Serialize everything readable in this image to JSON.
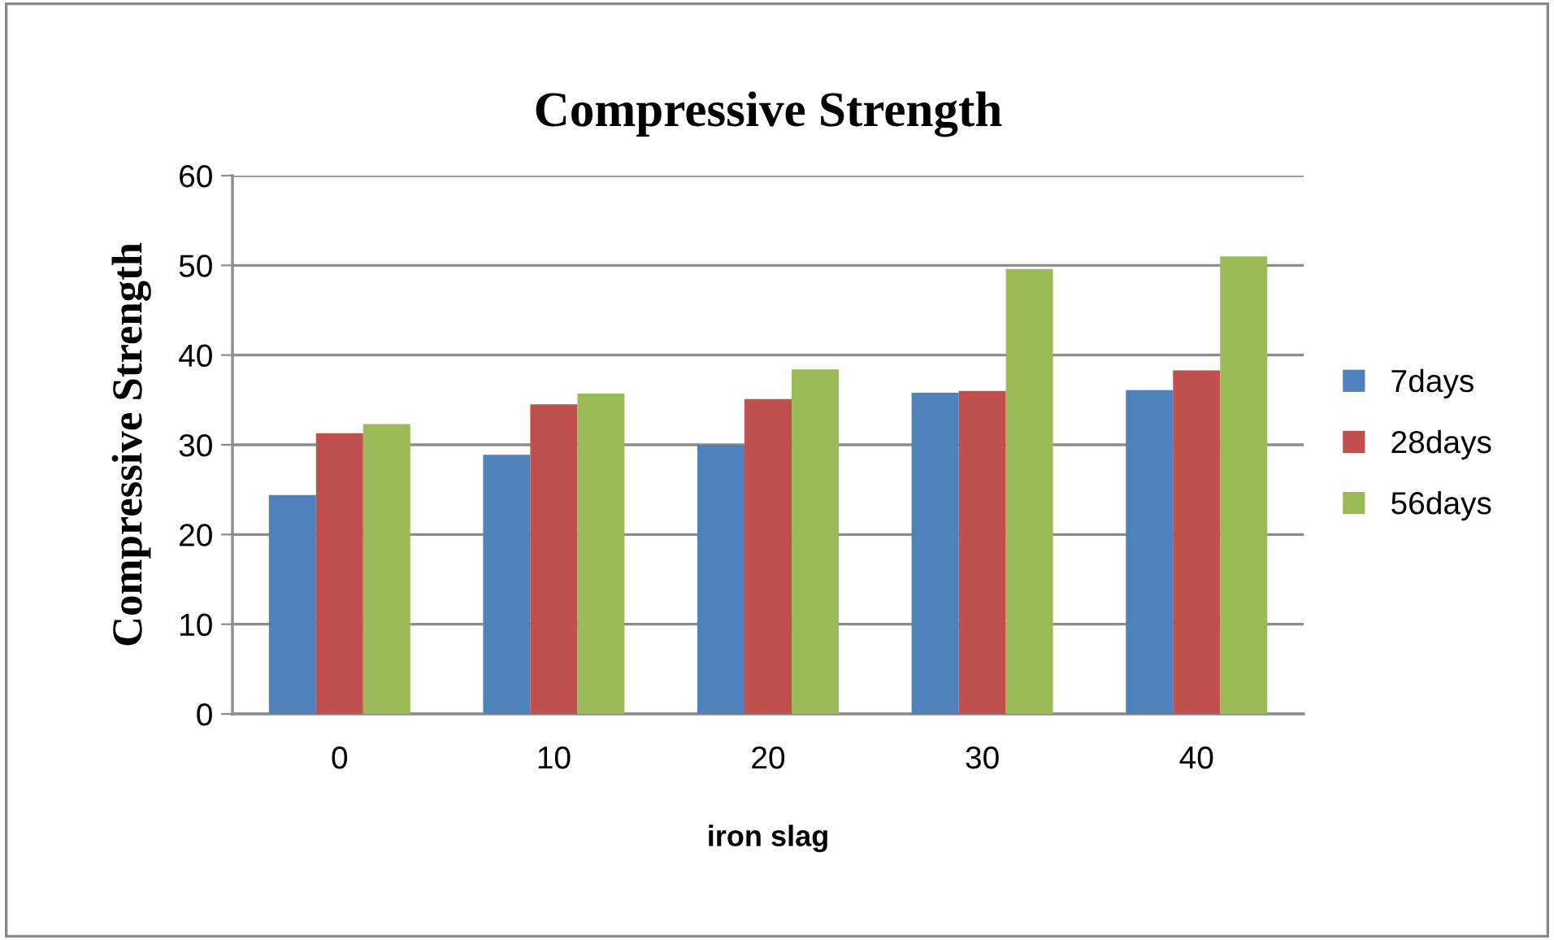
{
  "chart_data": {
    "type": "bar",
    "title": "Compressive Strength",
    "xlabel": "iron slag",
    "ylabel": "Compressive Strength",
    "categories": [
      "0",
      "10",
      "20",
      "30",
      "40"
    ],
    "series": [
      {
        "name": "7days",
        "color": "#4f81bd",
        "values": [
          24.4,
          28.9,
          30.0,
          35.8,
          36.1
        ]
      },
      {
        "name": "28days",
        "color": "#c0504d",
        "values": [
          31.3,
          34.5,
          35.1,
          36.0,
          38.3
        ]
      },
      {
        "name": "56days",
        "color": "#9bbb59",
        "values": [
          32.3,
          35.7,
          38.4,
          49.6,
          51.0
        ]
      }
    ],
    "ylim": [
      0,
      60
    ],
    "yticks": [
      0,
      10,
      20,
      30,
      40,
      50,
      60
    ],
    "grid": "y",
    "legend": "right"
  }
}
